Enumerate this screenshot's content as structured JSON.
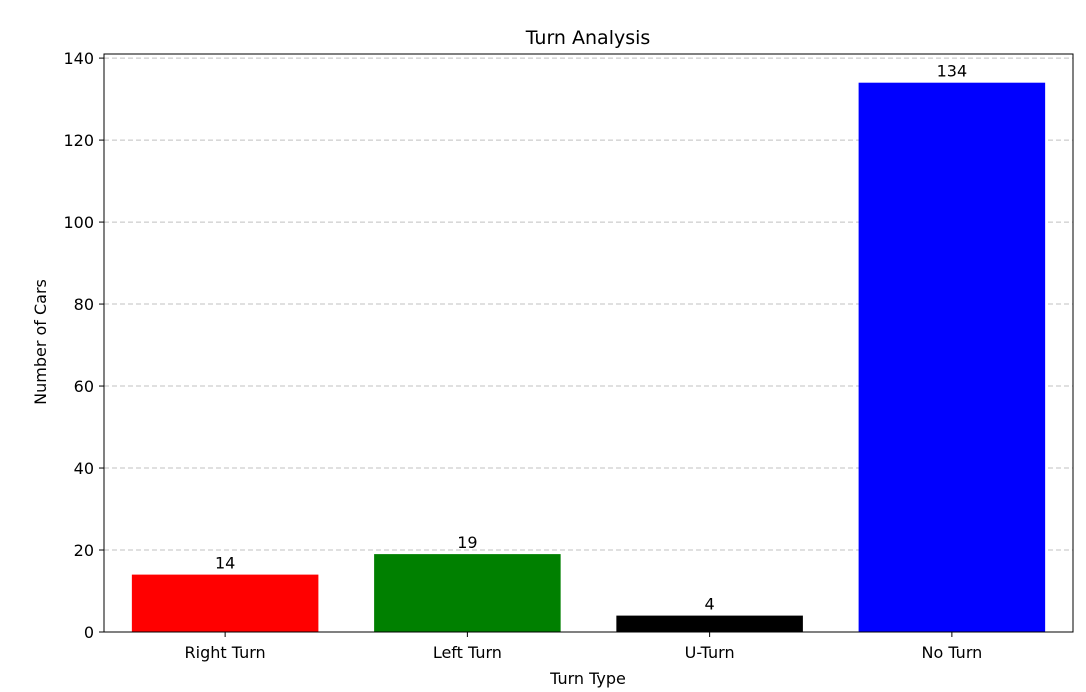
{
  "chart_data": {
    "type": "bar",
    "title": "Turn Analysis",
    "xlabel": "Turn Type",
    "ylabel": "Number of Cars",
    "categories": [
      "Right Turn",
      "Left Turn",
      "U-Turn",
      "No Turn"
    ],
    "values": [
      14,
      19,
      4,
      134
    ],
    "data_labels": [
      "14",
      "19",
      "4",
      "134"
    ],
    "colors": [
      "#ff0000",
      "#008000",
      "#000000",
      "#0000ff"
    ],
    "ylim": [
      0,
      141
    ],
    "yticks": [
      0,
      20,
      40,
      60,
      80,
      100,
      120,
      140
    ],
    "ytick_labels": [
      "0",
      "20",
      "40",
      "60",
      "80",
      "100",
      "120",
      "140"
    ],
    "grid": {
      "axis": "y",
      "style": "dashed",
      "color": "#c0c0c0"
    },
    "legend": "none"
  }
}
